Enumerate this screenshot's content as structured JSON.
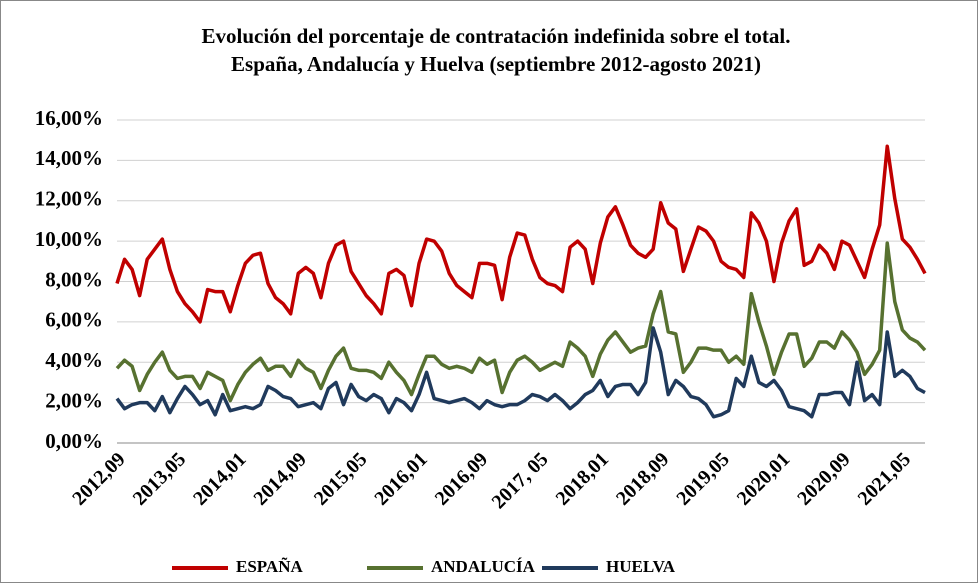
{
  "chart_data": {
    "type": "line",
    "title": [
      "Evolución del porcentaje de contratación indefinida sobre el total.",
      "España, Andalucía y Huelva (septiembre 2012-agosto 2021)"
    ],
    "categories": [
      "2012,09",
      null,
      null,
      null,
      null,
      null,
      null,
      null,
      "2013,05",
      null,
      null,
      null,
      null,
      null,
      null,
      null,
      "2014,01",
      null,
      null,
      null,
      null,
      null,
      null,
      null,
      "2014,09",
      null,
      null,
      null,
      null,
      null,
      null,
      null,
      "2015,05",
      null,
      null,
      null,
      null,
      null,
      null,
      null,
      "2016,01",
      null,
      null,
      null,
      null,
      null,
      null,
      null,
      "2016,09",
      null,
      null,
      null,
      null,
      null,
      null,
      null,
      "2017, 05",
      null,
      null,
      null,
      null,
      null,
      null,
      null,
      "2018,01",
      null,
      null,
      null,
      null,
      null,
      null,
      null,
      "2018,09",
      null,
      null,
      null,
      null,
      null,
      null,
      null,
      "2019,05",
      null,
      null,
      null,
      null,
      null,
      null,
      null,
      "2020,01",
      null,
      null,
      null,
      null,
      null,
      null,
      null,
      "2020,09",
      null,
      null,
      null,
      null,
      null,
      null,
      null,
      "2021,05",
      null,
      null,
      null
    ],
    "series": [
      {
        "name": "ESPAÑA",
        "color": "#c00000",
        "values": [
          7.9,
          9.1,
          8.6,
          7.3,
          9.1,
          9.6,
          10.1,
          8.6,
          7.5,
          6.9,
          6.5,
          6.0,
          7.6,
          7.5,
          7.5,
          6.5,
          7.8,
          8.9,
          9.3,
          9.4,
          7.9,
          7.2,
          6.9,
          6.4,
          8.4,
          8.7,
          8.4,
          7.2,
          8.9,
          9.8,
          10.0,
          8.5,
          7.9,
          7.3,
          6.9,
          6.4,
          8.4,
          8.6,
          8.3,
          6.8,
          8.9,
          10.1,
          10.0,
          9.5,
          8.4,
          7.8,
          7.5,
          7.2,
          8.9,
          8.9,
          8.8,
          7.1,
          9.2,
          10.4,
          10.3,
          9.1,
          8.2,
          7.9,
          7.8,
          7.5,
          9.7,
          10.0,
          9.6,
          7.9,
          9.9,
          11.2,
          11.7,
          10.8,
          9.8,
          9.4,
          9.2,
          9.6,
          11.9,
          10.9,
          10.6,
          8.5,
          9.6,
          10.7,
          10.5,
          10.0,
          9.0,
          8.7,
          8.6,
          8.2,
          11.4,
          10.9,
          10.0,
          8.0,
          9.9,
          11.0,
          11.6,
          8.8,
          9.0,
          9.8,
          9.4,
          8.6,
          10.0,
          9.8,
          9.0,
          8.2,
          9.6,
          10.8,
          14.7,
          12.1,
          10.1,
          9.7,
          9.1,
          8.4
        ]
      },
      {
        "name": "ANDALUCÍA",
        "color": "#577130",
        "values": [
          3.7,
          4.1,
          3.8,
          2.6,
          3.4,
          4.0,
          4.5,
          3.6,
          3.2,
          3.3,
          3.3,
          2.7,
          3.5,
          3.3,
          3.1,
          2.1,
          2.9,
          3.5,
          3.9,
          4.2,
          3.6,
          3.8,
          3.8,
          3.3,
          4.1,
          3.7,
          3.5,
          2.7,
          3.6,
          4.3,
          4.7,
          3.7,
          3.6,
          3.6,
          3.5,
          3.2,
          4.0,
          3.5,
          3.1,
          2.4,
          3.4,
          4.3,
          4.3,
          3.9,
          3.7,
          3.8,
          3.7,
          3.5,
          4.2,
          3.9,
          4.1,
          2.5,
          3.5,
          4.1,
          4.3,
          4.0,
          3.6,
          3.8,
          4.0,
          3.8,
          5.0,
          4.7,
          4.3,
          3.3,
          4.4,
          5.1,
          5.5,
          5.0,
          4.5,
          4.7,
          4.8,
          6.4,
          7.5,
          5.5,
          5.4,
          3.5,
          4.0,
          4.7,
          4.7,
          4.6,
          4.6,
          4.0,
          4.3,
          3.9,
          7.4,
          6.0,
          4.8,
          3.4,
          4.5,
          5.4,
          5.4,
          3.8,
          4.2,
          5.0,
          5.0,
          4.7,
          5.5,
          5.1,
          4.5,
          3.4,
          3.9,
          4.6,
          9.9,
          7.0,
          5.6,
          5.2,
          5.0,
          4.6
        ]
      },
      {
        "name": "HUELVA",
        "color": "#203a5c",
        "values": [
          2.2,
          1.7,
          1.9,
          2.0,
          2.0,
          1.6,
          2.3,
          1.5,
          2.2,
          2.8,
          2.4,
          1.9,
          2.1,
          1.4,
          2.4,
          1.6,
          1.7,
          1.8,
          1.7,
          1.9,
          2.8,
          2.6,
          2.3,
          2.2,
          1.8,
          1.9,
          2.0,
          1.7,
          2.7,
          3.0,
          1.9,
          2.9,
          2.3,
          2.1,
          2.4,
          2.2,
          1.5,
          2.2,
          2.0,
          1.6,
          2.4,
          3.5,
          2.2,
          2.1,
          2.0,
          2.1,
          2.2,
          2.0,
          1.7,
          2.1,
          1.9,
          1.8,
          1.9,
          1.9,
          2.1,
          2.4,
          2.3,
          2.1,
          2.4,
          2.1,
          1.7,
          2.0,
          2.4,
          2.6,
          3.1,
          2.3,
          2.8,
          2.9,
          2.9,
          2.4,
          3.0,
          5.7,
          4.5,
          2.4,
          3.1,
          2.8,
          2.3,
          2.2,
          1.9,
          1.3,
          1.4,
          1.6,
          3.2,
          2.8,
          4.3,
          3.0,
          2.8,
          3.1,
          2.6,
          1.8,
          1.7,
          1.6,
          1.3,
          2.4,
          2.4,
          2.5,
          2.5,
          1.9,
          4.0,
          2.1,
          2.4,
          1.9,
          5.5,
          3.3,
          3.6,
          3.3,
          2.7,
          2.5
        ]
      }
    ],
    "ylim": [
      0,
      16
    ],
    "yticks": [
      {
        "value": 0,
        "label": "0,00%"
      },
      {
        "value": 2,
        "label": "2,00%"
      },
      {
        "value": 4,
        "label": "4,00%"
      },
      {
        "value": 6,
        "label": "6,00%"
      },
      {
        "value": 8,
        "label": "8,00%"
      },
      {
        "value": 10,
        "label": "10,00%"
      },
      {
        "value": 12,
        "label": "12,00%"
      },
      {
        "value": 14,
        "label": "14,00%"
      },
      {
        "value": 16,
        "label": "16,00%"
      }
    ],
    "grid": true,
    "legend": "bottom"
  }
}
